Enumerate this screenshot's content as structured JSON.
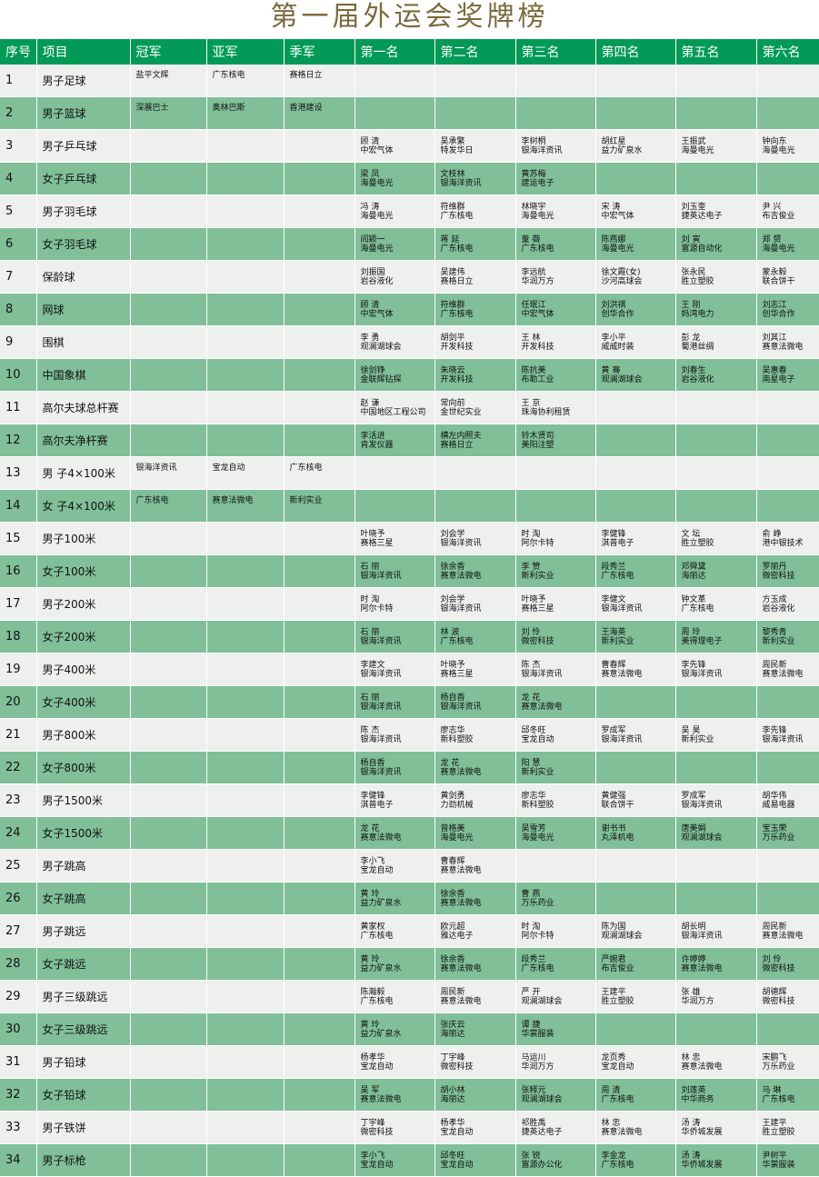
{
  "title": "第一届外运会奖牌榜",
  "headers": [
    "序号",
    "项目",
    "冠军",
    "亚军",
    "季军",
    "第一名",
    "第二名",
    "第三名",
    "第四名",
    "第五名",
    "第六名"
  ],
  "colors": {
    "header": "#009a56",
    "row_alt": "#80bf98",
    "row": "#eef0ee",
    "title": "#7b6a3c"
  },
  "rows": [
    {
      "no": "1",
      "event": "男子足球",
      "medals": [
        "盐平文辉",
        "广东核电",
        "赛格日立"
      ],
      "places": []
    },
    {
      "no": "2",
      "event": "男子篮球",
      "medals": [
        "深展巴士",
        "奥林巴斯",
        "香港建设"
      ],
      "places": []
    },
    {
      "no": "3",
      "event": "男子乒乓球",
      "medals": [],
      "places": [
        [
          "顾 清",
          "中宏气体"
        ],
        [
          "吴承繁",
          "特发华日"
        ],
        [
          "李树桐",
          "银海洋资讯"
        ],
        [
          "胡红星",
          "益力矿泉水"
        ],
        [
          "王振武",
          "海曼电光"
        ],
        [
          "钟向东",
          "海曼电光"
        ]
      ]
    },
    {
      "no": "4",
      "event": "女子乒乓球",
      "medals": [],
      "places": [
        [
          "梁 凤",
          "海曼电光"
        ],
        [
          "文枝林",
          "银海洋资讯"
        ],
        [
          "黄苏梅",
          "建运电子"
        ]
      ]
    },
    {
      "no": "5",
      "event": "男子羽毛球",
      "medals": [],
      "places": [
        [
          "冯 涛",
          "海曼电光"
        ],
        [
          "符维群",
          "广东核电"
        ],
        [
          "林晓宇",
          "海曼电光"
        ],
        [
          "宋 涛",
          "中宏气体"
        ],
        [
          "刘玉奎",
          "捷英达电子"
        ],
        [
          "尹 兴",
          "布吉俊业"
        ]
      ]
    },
    {
      "no": "6",
      "event": "女子羽毛球",
      "medals": [],
      "places": [
        [
          "阎颖一",
          "海曼电光"
        ],
        [
          "蒋 延",
          "广东核电"
        ],
        [
          "董 薇",
          "广东核电"
        ],
        [
          "陈燕娜",
          "海曼电光"
        ],
        [
          "刘 寅",
          "富源自动化"
        ],
        [
          "郑 赟",
          "海曼电光"
        ]
      ]
    },
    {
      "no": "7",
      "event": "保龄球",
      "medals": [],
      "places": [
        [
          "刘振国",
          "岩谷液化"
        ],
        [
          "吴建伟",
          "赛格日立"
        ],
        [
          "李远航",
          "华润万方"
        ],
        [
          "徐文霞(女)",
          "沙河高球会"
        ],
        [
          "张永民",
          "胜立塑胶"
        ],
        [
          "蒙永毅",
          "联合饼干"
        ]
      ]
    },
    {
      "no": "8",
      "event": "网球",
      "medals": [],
      "places": [
        [
          "顾 清",
          "中宏气体"
        ],
        [
          "符维群",
          "广东核电"
        ],
        [
          "任珉江",
          "中宏气体"
        ],
        [
          "刘洪祺",
          "创华合作"
        ],
        [
          "王 刚",
          "妈湾电力"
        ],
        [
          "刘志江",
          "创华合作"
        ]
      ]
    },
    {
      "no": "9",
      "event": "围棋",
      "medals": [],
      "places": [
        [
          "李 勇",
          "观澜湖球会"
        ],
        [
          "胡剑平",
          "开发科技"
        ],
        [
          "王 林",
          "开发科技"
        ],
        [
          "李小平",
          "威威时装"
        ],
        [
          "彭 龙",
          "蜀港丝绸"
        ],
        [
          "刘其江",
          "赛意法微电"
        ]
      ]
    },
    {
      "no": "10",
      "event": "中国象棋",
      "medals": [],
      "places": [
        [
          "徐剑铮",
          "金联辉钻探"
        ],
        [
          "朱晓云",
          "开发科技"
        ],
        [
          "陈抗美",
          "布勒工业"
        ],
        [
          "黄 骞",
          "观澜湖球会"
        ],
        [
          "刘春生",
          "岩谷液化"
        ],
        [
          "吴惠春",
          "南星电子"
        ]
      ]
    },
    {
      "no": "11",
      "event": "高尔夫球总杆赛",
      "medals": [],
      "places": [
        [
          "赵 谦",
          "中国地区工程公司"
        ],
        [
          "常向前",
          "金世纪实业"
        ],
        [
          "王 京",
          "珠海协利租赁"
        ]
      ]
    },
    {
      "no": "12",
      "event": "高尔夫净杆赛",
      "medals": [],
      "places": [
        [
          "李活进",
          "肯发仪器"
        ],
        [
          "横左内照夫",
          "赛格日立"
        ],
        [
          "铃木贤司",
          "美阳注塑"
        ]
      ]
    },
    {
      "no": "13",
      "event": "男 子4×100米",
      "medals": [
        "银海洋资讯",
        "宝龙自动",
        "广东核电"
      ],
      "places": []
    },
    {
      "no": "14",
      "event": "女 子4×100米",
      "medals": [
        "广东核电",
        "赛意法微电",
        "新利实业"
      ],
      "places": []
    },
    {
      "no": "15",
      "event": "男子100米",
      "medals": [],
      "places": [
        [
          "叶晓予",
          "赛格三星"
        ],
        [
          "刘会学",
          "银海洋资讯"
        ],
        [
          "时 淘",
          "阿尔卡特"
        ],
        [
          "李健锋",
          "淇普电子"
        ],
        [
          "文 坛",
          "胜立塑胶"
        ],
        [
          "俞 峥",
          "港中银技术"
        ]
      ]
    },
    {
      "no": "16",
      "event": "女子100米",
      "medals": [],
      "places": [
        [
          "石 丽",
          "银海洋资讯"
        ],
        [
          "徐余香",
          "赛意法微电"
        ],
        [
          "李 赞",
          "新利实业"
        ],
        [
          "段秀兰",
          "广东核电"
        ],
        [
          "邓舜黛",
          "海丽达"
        ],
        [
          "罗丽丹",
          "微密科技"
        ]
      ]
    },
    {
      "no": "17",
      "event": "男子200米",
      "medals": [],
      "places": [
        [
          "时 淘",
          "阿尔卡特"
        ],
        [
          "刘会学",
          "银海洋资讯"
        ],
        [
          "叶晓予",
          "赛格三星"
        ],
        [
          "李健文",
          "银海洋资讯"
        ],
        [
          "钟文革",
          "广东核电"
        ],
        [
          "方玉成",
          "岩谷液化"
        ]
      ]
    },
    {
      "no": "18",
      "event": "女子200米",
      "medals": [],
      "places": [
        [
          "石 丽",
          "银海洋资讯"
        ],
        [
          "林 波",
          "广东核电"
        ],
        [
          "刘 伶",
          "微密科技"
        ],
        [
          "王海英",
          "新利实业"
        ],
        [
          "周 玲",
          "美得理电子"
        ],
        [
          "黎秀青",
          "新利实业"
        ]
      ]
    },
    {
      "no": "19",
      "event": "男子400米",
      "medals": [],
      "places": [
        [
          "李建文",
          "银海洋资讯"
        ],
        [
          "叶晓予",
          "赛格三星"
        ],
        [
          "陈 杰",
          "银海洋资讯"
        ],
        [
          "曹春辉",
          "赛意法微电"
        ],
        [
          "李先锋",
          "银海洋资讯"
        ],
        [
          "周民新",
          "赛意法微电"
        ]
      ]
    },
    {
      "no": "20",
      "event": "女子400米",
      "medals": [],
      "places": [
        [
          "石 丽",
          "银海洋资讯"
        ],
        [
          "杨自香",
          "银海洋资讯"
        ],
        [
          "龙 花",
          "赛意法微电"
        ]
      ]
    },
    {
      "no": "21",
      "event": "男子800米",
      "medals": [],
      "places": [
        [
          "陈 杰",
          "银海洋资讯"
        ],
        [
          "廖志华",
          "新科塑胶"
        ],
        [
          "邱冬旺",
          "宝龙自动"
        ],
        [
          "罗成军",
          "银海洋资讯"
        ],
        [
          "吴 昊",
          "新利实业"
        ],
        [
          "李先锋",
          "银海洋资讯"
        ]
      ]
    },
    {
      "no": "22",
      "event": "女子800米",
      "medals": [],
      "places": [
        [
          "杨自香",
          "银海洋资讯"
        ],
        [
          "龙 花",
          "赛意法微电"
        ],
        [
          "阳 慧",
          "新利实业"
        ]
      ]
    },
    {
      "no": "23",
      "event": "男子1500米",
      "medals": [],
      "places": [
        [
          "李健锋",
          "淇普电子"
        ],
        [
          "黄剑勇",
          "力劲机械"
        ],
        [
          "廖志华",
          "新科塑胶"
        ],
        [
          "黄健强",
          "联合饼干"
        ],
        [
          "罗成军",
          "银海洋资讯"
        ],
        [
          "胡华伟",
          "威易电器"
        ]
      ]
    },
    {
      "no": "24",
      "event": "女子1500米",
      "medals": [],
      "places": [
        [
          "龙 花",
          "赛意法微电"
        ],
        [
          "曾格美",
          "海曼电光"
        ],
        [
          "吴雪芳",
          "海曼电光"
        ],
        [
          "谢书书",
          "丸泽机电"
        ],
        [
          "唐美娟",
          "观澜湖球会"
        ],
        [
          "宝玉荣",
          "万乐药业"
        ]
      ]
    },
    {
      "no": "25",
      "event": "男子跳高",
      "medals": [],
      "places": [
        [
          "李小飞",
          "宝龙自动"
        ],
        [
          "曹春辉",
          "赛意法微电"
        ]
      ]
    },
    {
      "no": "26",
      "event": "女子跳高",
      "medals": [],
      "places": [
        [
          "黄 玲",
          "益力矿泉水"
        ],
        [
          "徐余香",
          "赛意法微电"
        ],
        [
          "曹 燕",
          "万乐药业"
        ]
      ]
    },
    {
      "no": "27",
      "event": "男子跳远",
      "medals": [],
      "places": [
        [
          "黄家权",
          "广东核电"
        ],
        [
          "欧元超",
          "雅达电子"
        ],
        [
          "时 淘",
          "阿尔卡特"
        ],
        [
          "陈为国",
          "观澜湖球会"
        ],
        [
          "胡长明",
          "银海洋资讯"
        ],
        [
          "周民新",
          "赛意法微电"
        ]
      ]
    },
    {
      "no": "28",
      "event": "女子跳远",
      "medals": [],
      "places": [
        [
          "黄 玲",
          "益力矿泉水"
        ],
        [
          "徐余香",
          "赛意法微电"
        ],
        [
          "段秀兰",
          "广东核电"
        ],
        [
          "严婉君",
          "布吉俊业"
        ],
        [
          "许婷婷",
          "赛意法微电"
        ],
        [
          "刘 伶",
          "微密科技"
        ]
      ]
    },
    {
      "no": "29",
      "event": "男子三级跳远",
      "medals": [],
      "places": [
        [
          "陈瀚毅",
          "广东核电"
        ],
        [
          "周民新",
          "赛意法微电"
        ],
        [
          "严 开",
          "观澜湖球会"
        ],
        [
          "王建平",
          "胜立塑胶"
        ],
        [
          "张 雄",
          "华润万方"
        ],
        [
          "胡德辉",
          "微密科技"
        ]
      ]
    },
    {
      "no": "30",
      "event": "女子三级跳远",
      "medals": [],
      "places": [
        [
          "黄 玲",
          "益力矿泉水"
        ],
        [
          "张庆云",
          "海丽达"
        ],
        [
          "谭 捷",
          "华裳服装"
        ]
      ]
    },
    {
      "no": "31",
      "event": "男子铅球",
      "medals": [],
      "places": [
        [
          "杨孝华",
          "宝龙自动"
        ],
        [
          "丁宇峰",
          "微密科技"
        ],
        [
          "马运川",
          "华润万方"
        ],
        [
          "龙页秀",
          "宝龙自动"
        ],
        [
          "林 忠",
          "赛意法微电"
        ],
        [
          "宋鹏飞",
          "万乐药业"
        ]
      ]
    },
    {
      "no": "32",
      "event": "女子铅球",
      "medals": [],
      "places": [
        [
          "吴 军",
          "赛意法微电"
        ],
        [
          "胡小林",
          "海丽达"
        ],
        [
          "张释元",
          "观澜湖球会"
        ],
        [
          "周 清",
          "广东核电"
        ],
        [
          "刘莲英",
          "中华商务"
        ],
        [
          "马 琳",
          "广东核电"
        ]
      ]
    },
    {
      "no": "33",
      "event": "男子铁饼",
      "medals": [],
      "places": [
        [
          "丁宇峰",
          "微密科技"
        ],
        [
          "杨孝华",
          "宝龙自动"
        ],
        [
          "祁胜禹",
          "捷英达电子"
        ],
        [
          "林 忠",
          "赛意法微电"
        ],
        [
          "汤 涛",
          "华侨城发展"
        ],
        [
          "王建平",
          "胜立塑胶"
        ]
      ]
    },
    {
      "no": "34",
      "event": "男子标枪",
      "medals": [],
      "places": [
        [
          "李小飞",
          "宝龙自动"
        ],
        [
          "邱冬旺",
          "宝龙自动"
        ],
        [
          "张 锐",
          "富源办公化"
        ],
        [
          "李金龙",
          "广东核电"
        ],
        [
          "汤 涛",
          "华侨城发展"
        ],
        [
          "尹树平",
          "华裳服装"
        ]
      ]
    }
  ]
}
